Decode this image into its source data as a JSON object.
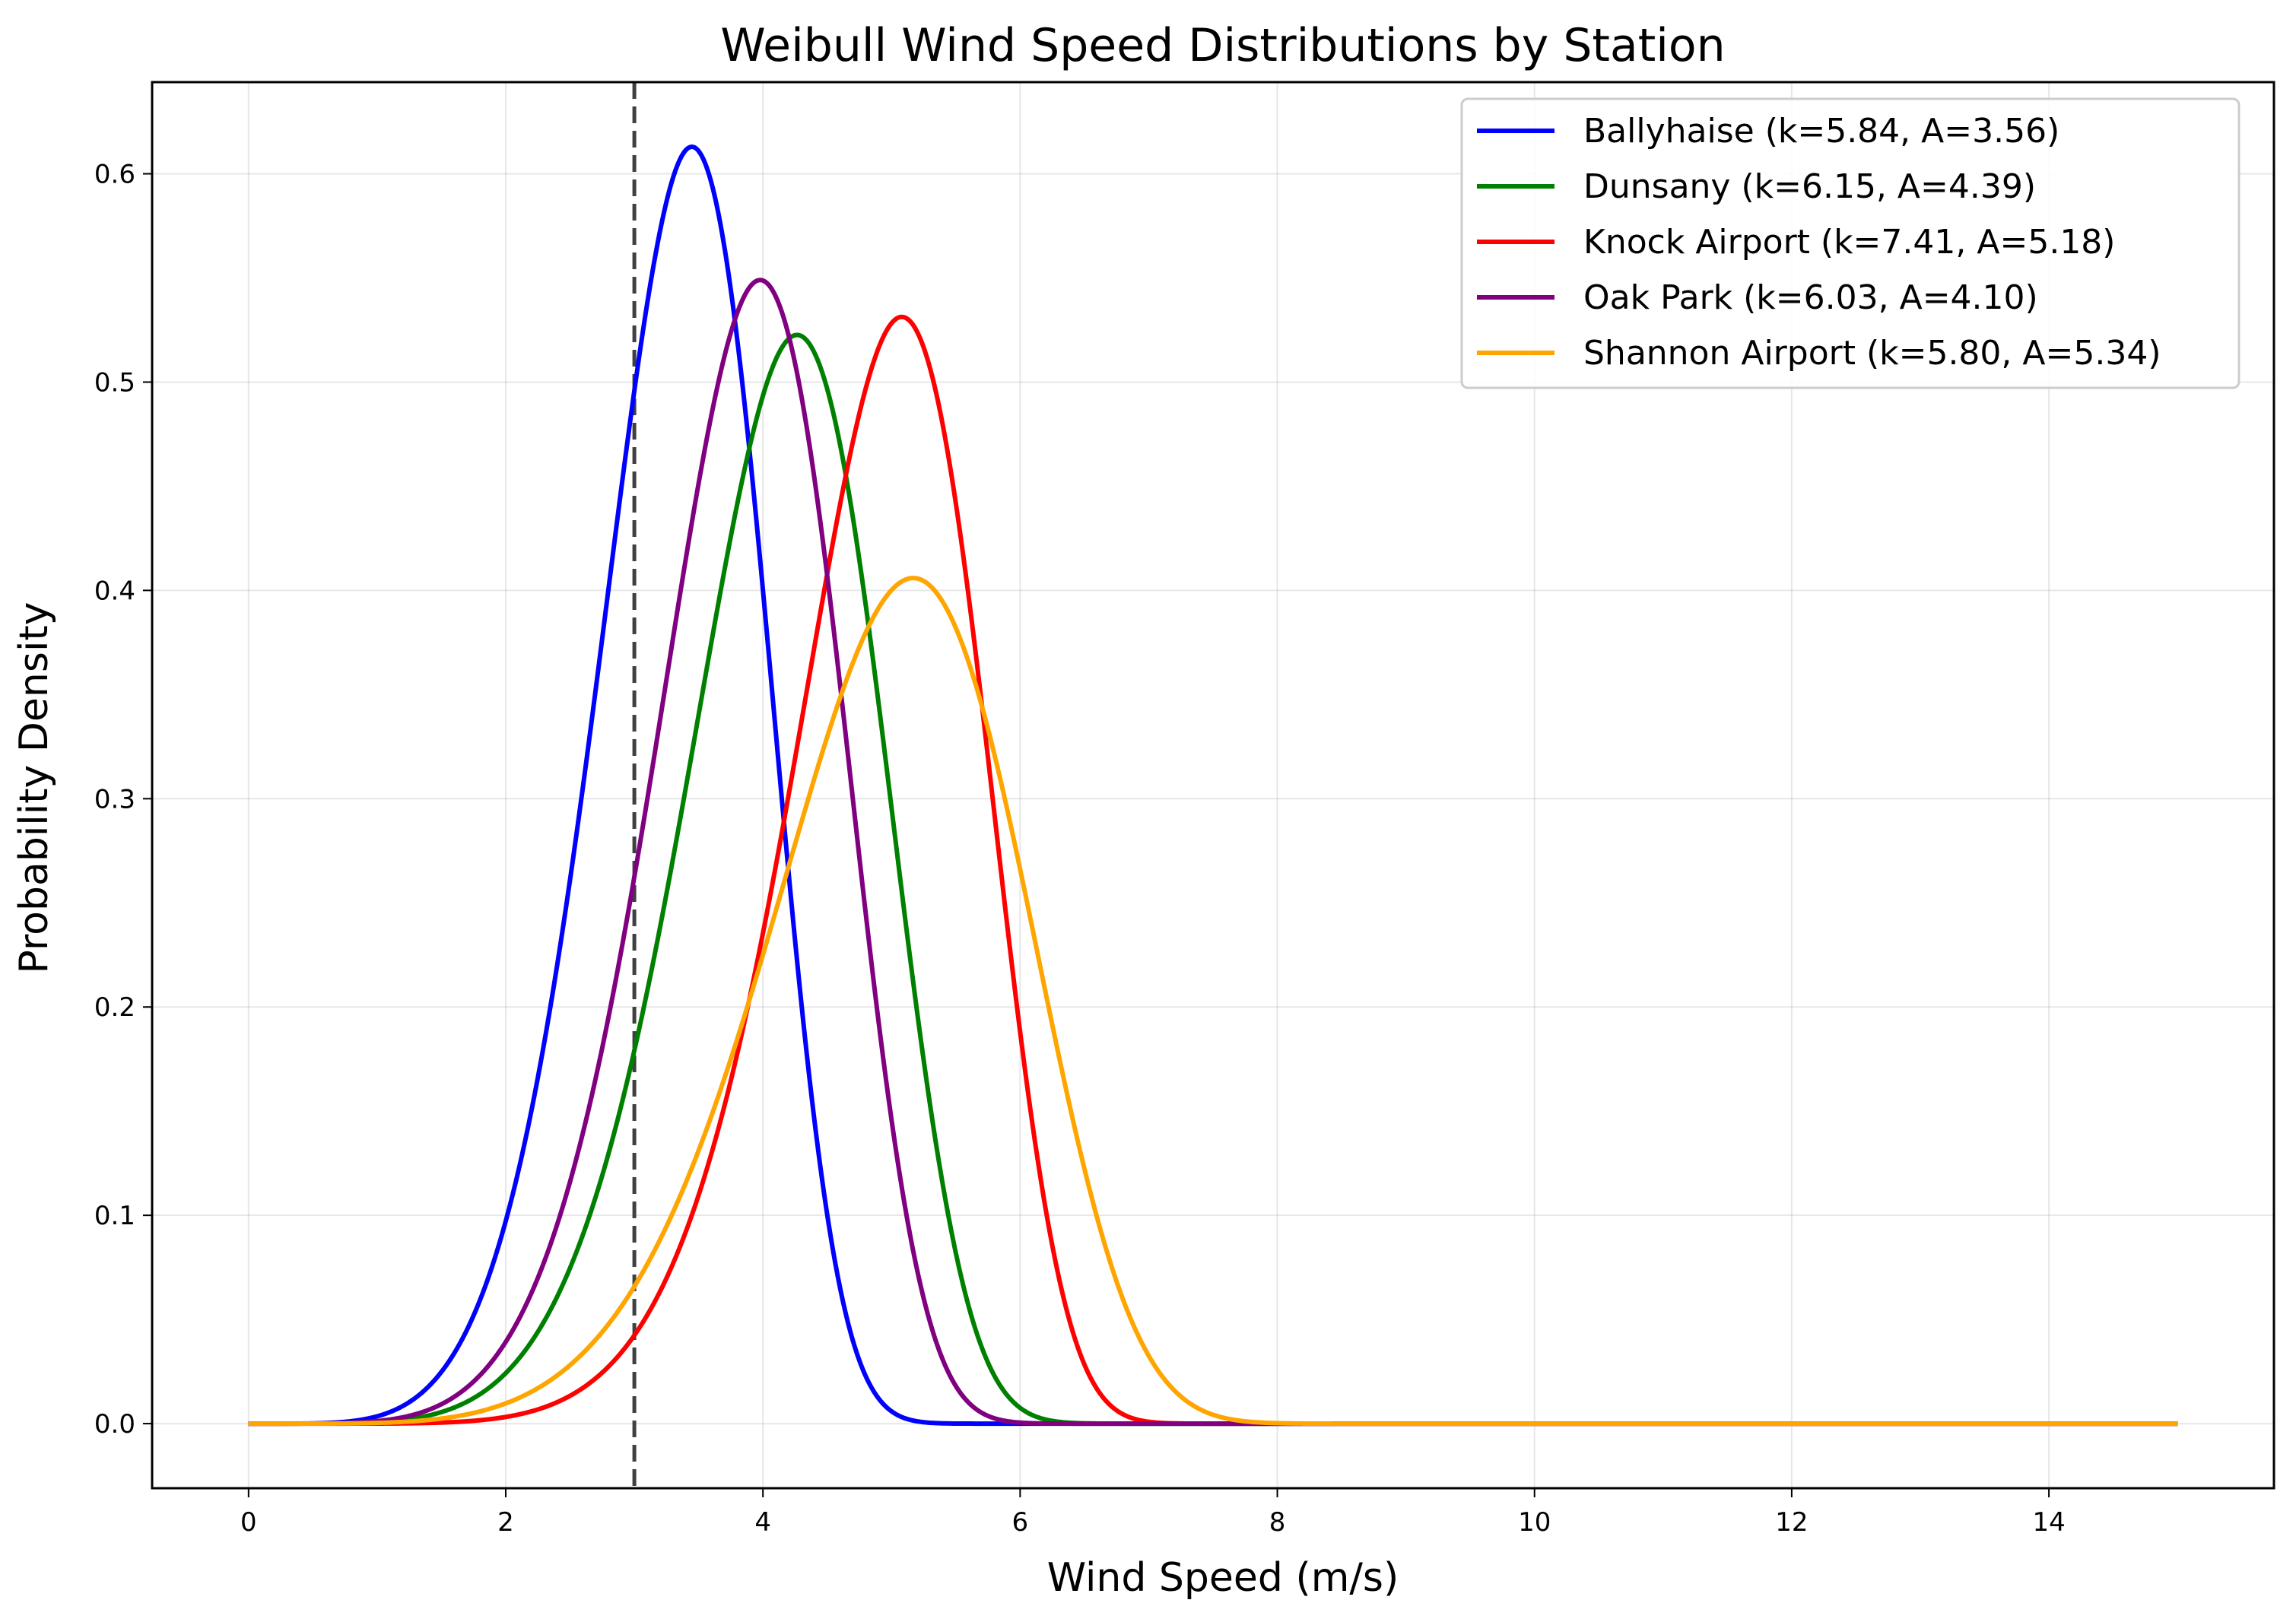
{
  "chart_data": {
    "type": "line",
    "title": "Weibull Wind Speed Distributions by Station",
    "xlabel": "Wind Speed (m/s)",
    "ylabel": "Probability Density",
    "xlim": [
      -0.75,
      15.75
    ],
    "ylim": [
      -0.031,
      0.644
    ],
    "x_range": [
      0,
      15
    ],
    "xticks": [
      0,
      2,
      4,
      6,
      8,
      10,
      12,
      14
    ],
    "xtick_labels": [
      "0",
      "2",
      "4",
      "6",
      "8",
      "10",
      "12",
      "14"
    ],
    "yticks": [
      0.0,
      0.1,
      0.2,
      0.3,
      0.4,
      0.5,
      0.6
    ],
    "ytick_labels": [
      "0.0",
      "0.1",
      "0.2",
      "0.3",
      "0.4",
      "0.5",
      "0.6"
    ],
    "grid": true,
    "legend_position": "top-right",
    "reference_line": {
      "x": 3,
      "style": "dashed",
      "color": "#404040"
    },
    "series": [
      {
        "name": "Ballyhaise (k=5.84, A=3.56)",
        "k": 5.84,
        "A": 3.56,
        "color": "#0000ff"
      },
      {
        "name": "Dunsany (k=6.15, A=4.39)",
        "k": 6.15,
        "A": 4.39,
        "color": "#008000"
      },
      {
        "name": "Knock Airport (k=7.41, A=5.18)",
        "k": 7.41,
        "A": 5.18,
        "color": "#ff0000"
      },
      {
        "name": "Oak Park (k=6.03, A=4.10)",
        "k": 6.03,
        "A": 4.1,
        "color": "#800080"
      },
      {
        "name": "Shannon Airport (k=5.80, A=5.34)",
        "k": 5.8,
        "A": 5.34,
        "color": "#ffa500"
      }
    ]
  }
}
